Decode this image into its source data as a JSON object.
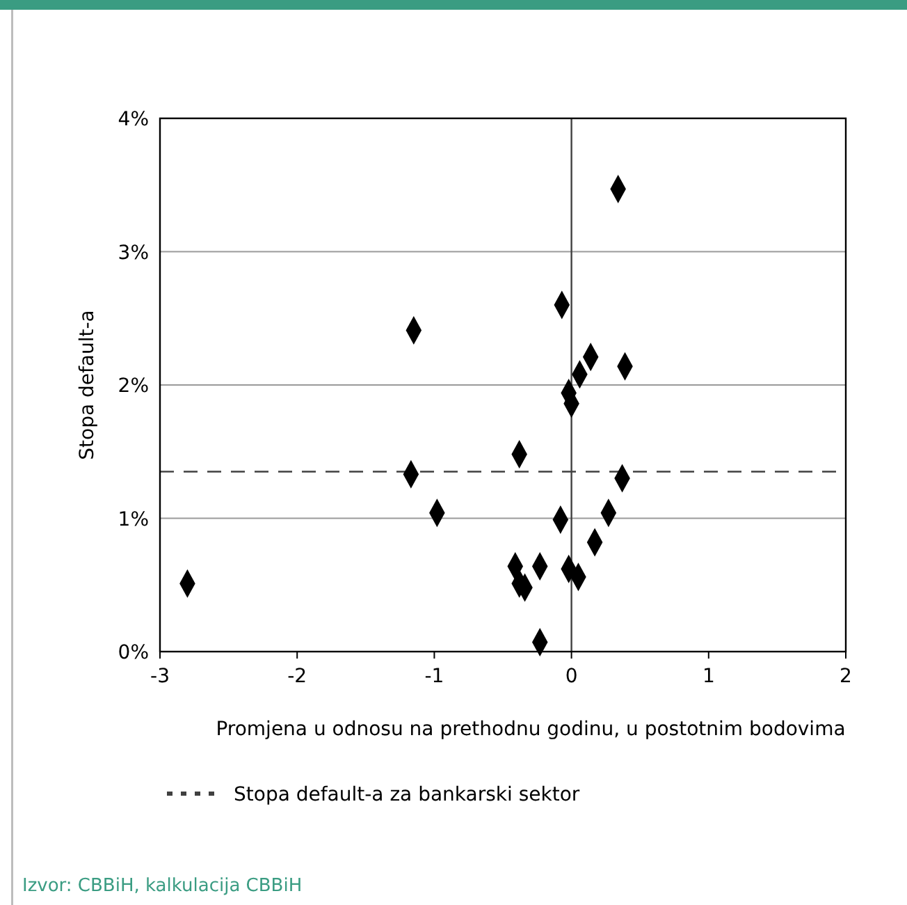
{
  "chart_data": {
    "type": "scatter",
    "xlabel": "Promjena u odnosu na prethodnu godinu, u postotnim bodovima",
    "ylabel": "Stopa default-a",
    "x": [
      0.34,
      -0.07,
      -1.15,
      0.14,
      0.39,
      0.06,
      -0.02,
      0.0,
      -0.38,
      -1.17,
      0.37,
      -0.98,
      0.27,
      -0.08,
      0.17,
      -0.41,
      -0.23,
      -0.02,
      0.05,
      -0.38,
      -0.34,
      -2.8,
      -0.23
    ],
    "series": [
      {
        "color": "#000000",
        "values": [
          3.47,
          2.6,
          2.41,
          2.21,
          2.14,
          2.08,
          1.94,
          1.86,
          1.48,
          1.33,
          1.3,
          1.04,
          1.04,
          0.99,
          0.82,
          0.64,
          0.64,
          0.62,
          0.56,
          0.51,
          0.48,
          0.51,
          0.07
        ]
      }
    ],
    "marker": "diamond",
    "xlim": [
      -3,
      2
    ],
    "xticks": [
      -3,
      -2,
      -1,
      0,
      1,
      2
    ],
    "ylim": [
      0,
      4
    ],
    "yticks": [
      {
        "value": 0,
        "label": "0%"
      },
      {
        "value": 1,
        "label": "1%"
      },
      {
        "value": 2,
        "label": "2%"
      },
      {
        "value": 3,
        "label": "3%"
      },
      {
        "value": 4,
        "label": "4%"
      }
    ],
    "grid": "y",
    "legend": "bottom",
    "ref_lines": [
      {
        "axis": "y",
        "value": 1.35,
        "label": "Stopa default-a za bankarski sektor",
        "color": "#404040",
        "line_style": "dashed"
      },
      {
        "axis": "x",
        "value": 0,
        "color": "#404040",
        "line_style": "solid"
      }
    ],
    "annotations": [
      "Izvor: CBBiH, kalkulacija CBBiH"
    ]
  }
}
